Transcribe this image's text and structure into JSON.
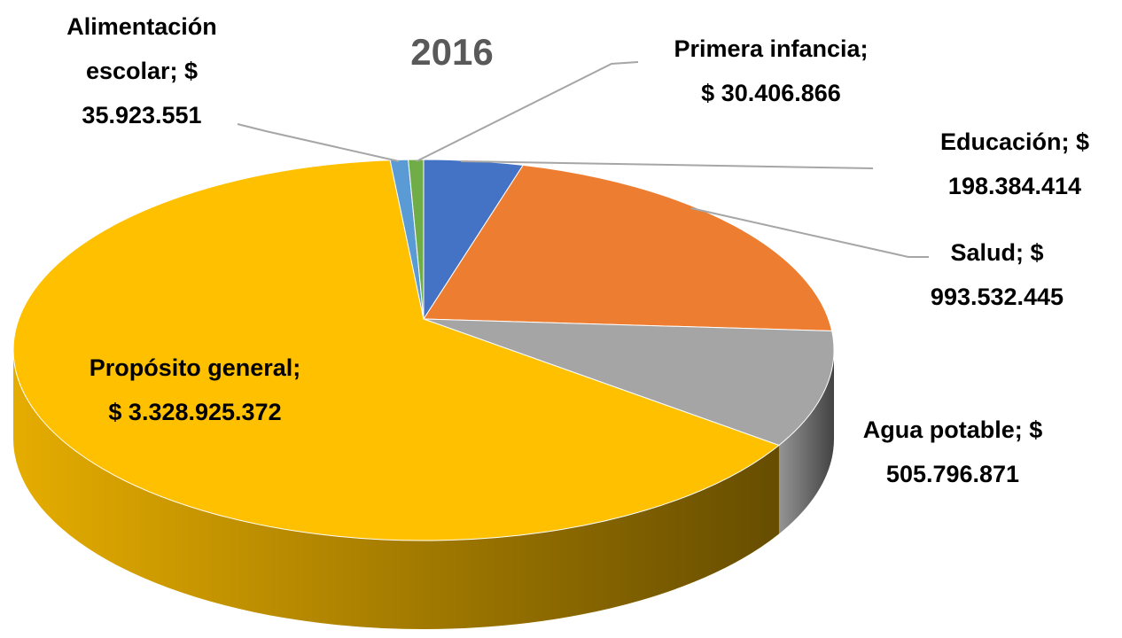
{
  "chart_data": {
    "type": "pie3d",
    "title": "2016",
    "categories": [
      "Educación;",
      "Salud;",
      "Agua potable;",
      "Propósito general;",
      "Alimentación escolar;",
      "Primera infancia;"
    ],
    "values": [
      198384414,
      993532445,
      505796871,
      3328925372,
      35923551,
      30406866
    ],
    "value_labels": [
      "$ 198.384.414",
      "$ 993.532.445",
      "$ 505.796.871",
      "$ 3.328.925.372",
      "$ 35.923.551",
      "$ 30.406.866"
    ],
    "colors": [
      "#4472c4",
      "#ed7d31",
      "#a5a5a5",
      "#ffc000",
      "#5b9bd5",
      "#70ad47"
    ]
  }
}
